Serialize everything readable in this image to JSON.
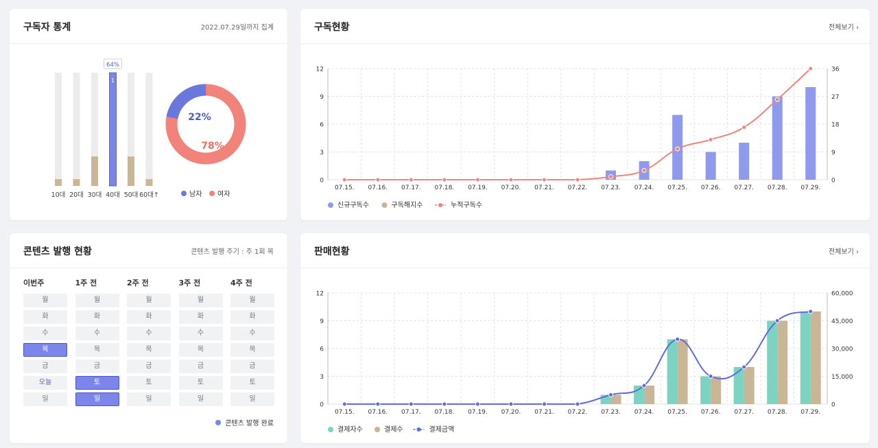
{
  "colors": {
    "accent": "#7b85e8",
    "blue_dark": "#5060cc",
    "coral": "#f2837a",
    "tan": "#c8b696",
    "teal": "#7dd3c2",
    "grid": "#e2e2e2",
    "bar_bg": "#ececec"
  },
  "stats": {
    "title": "구독자 통계",
    "subtitle": "2022.07.29일까지 집계",
    "age_tooltip": "64%",
    "age_bar_count": "1",
    "age_groups": [
      "10대",
      "20대",
      "30대",
      "40대",
      "50대",
      "60대↑"
    ],
    "age_fill": [
      0.06,
      0.06,
      0.26,
      1.0,
      0.26,
      0.06
    ],
    "male_pct": 22,
    "female_pct": 78,
    "male_label": "22%",
    "female_label": "78%",
    "legend_male": "남자",
    "legend_female": "여자"
  },
  "subscription": {
    "title": "구독현황",
    "link": "전체보기 ›",
    "legend": [
      "신규구독수",
      "구독해지수",
      "누적구독수"
    ],
    "chart_data": {
      "type": "bar+line",
      "categories": [
        "07.15.",
        "07.16.",
        "07.17.",
        "07.18.",
        "07.19.",
        "07.20.",
        "07.21.",
        "07.22.",
        "07.23.",
        "07.24.",
        "07.25.",
        "07.26.",
        "07.27.",
        "07.28.",
        "07.29."
      ],
      "y_left_ticks": [
        "0",
        "3",
        "6",
        "9",
        "12"
      ],
      "y_left_max": 12,
      "y_right_ticks": [
        "0",
        "9",
        "18",
        "27",
        "36"
      ],
      "y_right_max": 36,
      "series": [
        {
          "name": "신규구독수",
          "type": "bar",
          "axis": "left",
          "values": [
            0,
            0,
            0,
            0,
            0,
            0,
            0,
            0,
            1,
            2,
            7,
            3,
            4,
            9,
            10
          ]
        },
        {
          "name": "구독해지수",
          "type": "bar",
          "axis": "left",
          "values": [
            0,
            0,
            0,
            0,
            0,
            0,
            0,
            0,
            0,
            0,
            0,
            0,
            0,
            0,
            0
          ]
        },
        {
          "name": "누적구독수",
          "type": "line",
          "axis": "right",
          "values": [
            0,
            0,
            0,
            0,
            0,
            0,
            0,
            0,
            1,
            3,
            10,
            13,
            17,
            26,
            36
          ]
        }
      ]
    }
  },
  "content": {
    "title": "콘텐츠 발행 현황",
    "subtitle": "콘텐츠 발행 주기 : 주 1회 목",
    "legend": "콘텐츠 발행 완료",
    "weeks": [
      {
        "label": "이번주",
        "days": [
          {
            "d": "월",
            "s": "n"
          },
          {
            "d": "화",
            "s": "n"
          },
          {
            "d": "수",
            "s": "n"
          },
          {
            "d": "목",
            "s": "done"
          },
          {
            "d": "금",
            "s": "n"
          },
          {
            "d": "오늘",
            "s": "today"
          },
          {
            "d": "일",
            "s": "n"
          }
        ]
      },
      {
        "label": "1주 전",
        "days": [
          {
            "d": "월",
            "s": "n"
          },
          {
            "d": "화",
            "s": "n"
          },
          {
            "d": "수",
            "s": "n"
          },
          {
            "d": "목",
            "s": "n"
          },
          {
            "d": "금",
            "s": "n"
          },
          {
            "d": "토",
            "s": "done"
          },
          {
            "d": "일",
            "s": "done"
          }
        ]
      },
      {
        "label": "2주 전",
        "days": [
          {
            "d": "월",
            "s": "n"
          },
          {
            "d": "화",
            "s": "n"
          },
          {
            "d": "수",
            "s": "n"
          },
          {
            "d": "목",
            "s": "n"
          },
          {
            "d": "금",
            "s": "n"
          },
          {
            "d": "토",
            "s": "n"
          },
          {
            "d": "일",
            "s": "n"
          }
        ]
      },
      {
        "label": "3주 전",
        "days": [
          {
            "d": "월",
            "s": "n"
          },
          {
            "d": "화",
            "s": "n"
          },
          {
            "d": "수",
            "s": "n"
          },
          {
            "d": "목",
            "s": "n"
          },
          {
            "d": "금",
            "s": "n"
          },
          {
            "d": "토",
            "s": "n"
          },
          {
            "d": "일",
            "s": "n"
          }
        ]
      },
      {
        "label": "4주 전",
        "days": [
          {
            "d": "월",
            "s": "n"
          },
          {
            "d": "화",
            "s": "n"
          },
          {
            "d": "수",
            "s": "n"
          },
          {
            "d": "목",
            "s": "n"
          },
          {
            "d": "금",
            "s": "n"
          },
          {
            "d": "토",
            "s": "n"
          },
          {
            "d": "일",
            "s": "n"
          }
        ]
      }
    ]
  },
  "sales": {
    "title": "판매현황",
    "link": "전체보기 ›",
    "legend": [
      "결제자수",
      "결제수",
      "결제금액"
    ],
    "chart_data": {
      "type": "bar+line",
      "categories": [
        "07.15.",
        "07.16.",
        "07.17.",
        "07.18.",
        "07.19.",
        "07.20.",
        "07.21.",
        "07.22.",
        "07.23.",
        "07.24.",
        "07.25.",
        "07.26.",
        "07.27.",
        "07.28.",
        "07.29."
      ],
      "y_left_ticks": [
        "0",
        "3",
        "6",
        "9",
        "12"
      ],
      "y_left_max": 12,
      "y_right_ticks": [
        "0",
        "15,000",
        "30,000",
        "45,000",
        "60,000"
      ],
      "y_right_max": 60000,
      "series": [
        {
          "name": "결제자수",
          "type": "bar",
          "axis": "left",
          "values": [
            0,
            0,
            0,
            0,
            0,
            0,
            0,
            0,
            1,
            2,
            7,
            3,
            4,
            9,
            10
          ]
        },
        {
          "name": "결제수",
          "type": "bar",
          "axis": "left",
          "values": [
            0,
            0,
            0,
            0,
            0,
            0,
            0,
            0,
            1,
            2,
            7,
            3,
            4,
            9,
            10
          ]
        },
        {
          "name": "결제금액",
          "type": "line",
          "axis": "right",
          "values": [
            0,
            0,
            0,
            0,
            0,
            0,
            0,
            0,
            5000,
            10000,
            35000,
            15000,
            20000,
            45000,
            50000
          ]
        }
      ]
    }
  }
}
